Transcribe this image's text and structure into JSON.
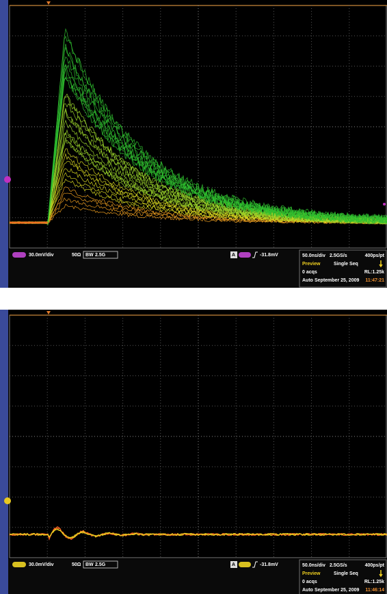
{
  "screens": [
    {
      "channel": {
        "scale": "30.0mV/div",
        "impedance": "50Ω",
        "bw_label": "BW",
        "bandwidth": "2.5G"
      },
      "trigger": {
        "source": "A",
        "level": "-31.8mV"
      },
      "info": {
        "timebase": "50.0ns/div",
        "sample_rate": "2.5GS/s",
        "resolution": "400ps/pt",
        "mode": "Preview",
        "acquisition": "Single Seq",
        "acqs": "0 acqs",
        "record_length": "RL:1.25k",
        "trigger_mode": "Auto",
        "date": "September 25, 2009",
        "time": "11:47:21"
      }
    },
    {
      "channel": {
        "scale": "30.0mV/div",
        "impedance": "50Ω",
        "bw_label": "BW",
        "bandwidth": "2.5G"
      },
      "trigger": {
        "source": "A",
        "level": "-31.8mV"
      },
      "info": {
        "timebase": "50.0ns/div",
        "sample_rate": "2.5GS/s",
        "resolution": "400ps/pt",
        "mode": "Preview",
        "acquisition": "Single Seq",
        "acqs": "0 acqs",
        "record_length": "RL:1.25k",
        "trigger_mode": "Auto",
        "date": "September 25, 2009",
        "time": "11:46:14"
      }
    }
  ]
}
